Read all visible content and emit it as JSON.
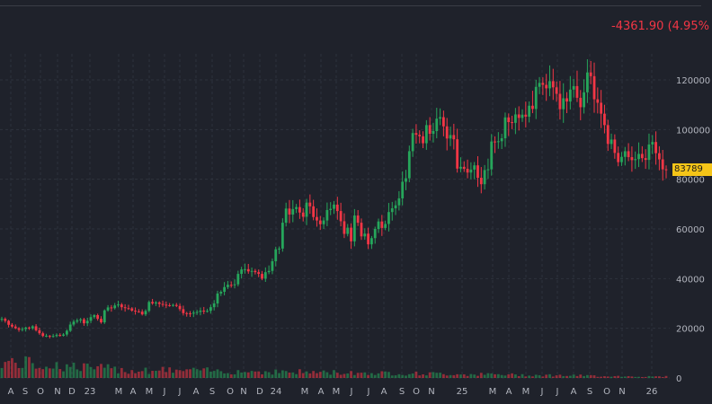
{
  "header": {
    "change_text": "-4361.90 (4.95%"
  },
  "price_badge": "83789",
  "colors": {
    "up": "#26a65b",
    "down": "#f23645",
    "grid": "#2e323c",
    "text": "#b2b5be",
    "badge": "#f5c518"
  },
  "chart_data": {
    "type": "candlestick",
    "y_axis_side": "right",
    "ylim": [
      0,
      130000
    ],
    "yticks": [
      0,
      20000,
      40000,
      60000,
      80000,
      100000,
      120000
    ],
    "xticks": [
      "A",
      "S",
      "O",
      "N",
      "D",
      "23",
      "M",
      "A",
      "M",
      "J",
      "J",
      "A",
      "S",
      "O",
      "N",
      "D",
      "24",
      "M",
      "A",
      "M",
      "J",
      "J",
      "A",
      "S",
      "O",
      "N",
      "25",
      "M",
      "A",
      "M",
      "J",
      "J",
      "A",
      "S",
      "O",
      "N",
      "26"
    ],
    "last_price": 83789,
    "grid": true,
    "series_approx_weekly_close": [
      23800,
      23000,
      21400,
      20700,
      20000,
      19400,
      19700,
      20300,
      20000,
      20800,
      19200,
      18000,
      16900,
      17000,
      16800,
      16900,
      17300,
      17000,
      17500,
      19000,
      21500,
      22700,
      23200,
      23600,
      22000,
      23000,
      24500,
      25300,
      23800,
      22400,
      27200,
      28400,
      28100,
      29200,
      29600,
      28500,
      28100,
      28000,
      27100,
      26800,
      26700,
      25600,
      27000,
      30600,
      30000,
      30400,
      29800,
      29500,
      29300,
      29200,
      29400,
      29000,
      27700,
      26100,
      26000,
      25900,
      26300,
      26600,
      27100,
      26800,
      27000,
      28500,
      30000,
      34000,
      34700,
      36600,
      37500,
      37400,
      37700,
      41900,
      43700,
      43800,
      42900,
      43100,
      42600,
      41900,
      40000,
      42600,
      43100,
      47000,
      51800,
      52100,
      62500,
      68200,
      65800,
      68000,
      68800,
      66600,
      64900,
      70600,
      69100,
      64800,
      63400,
      61900,
      63400,
      67600,
      68100,
      69800,
      67200,
      63100,
      58000,
      60500,
      55000,
      65400,
      62500,
      57000,
      58100,
      53800,
      56300,
      60000,
      63000,
      60400,
      62000,
      66800,
      68300,
      69500,
      72300,
      79000,
      80400,
      91300,
      98600,
      97900,
      97300,
      94500,
      101800,
      98300,
      99400,
      104400,
      105000,
      101300,
      96400,
      97800,
      96100,
      84300,
      85000,
      84200,
      82700,
      83900,
      85600,
      80600,
      78000,
      83700,
      84000,
      95200,
      95000,
      95300,
      96500,
      104900,
      103000,
      102700,
      106100,
      104700,
      106000,
      105200,
      109600,
      108300,
      117200,
      118800,
      118000,
      116600,
      119500,
      117000,
      114400,
      108200,
      112600,
      111300,
      116100,
      117500,
      112800,
      109000,
      115000,
      123000,
      121500,
      112200,
      110800,
      106400,
      101800,
      94200,
      96000,
      90600,
      86900,
      89000,
      91300,
      88900,
      87700,
      88100,
      90200,
      88500,
      87800,
      94000,
      95000,
      90500,
      88000,
      84000,
      83789
    ]
  }
}
